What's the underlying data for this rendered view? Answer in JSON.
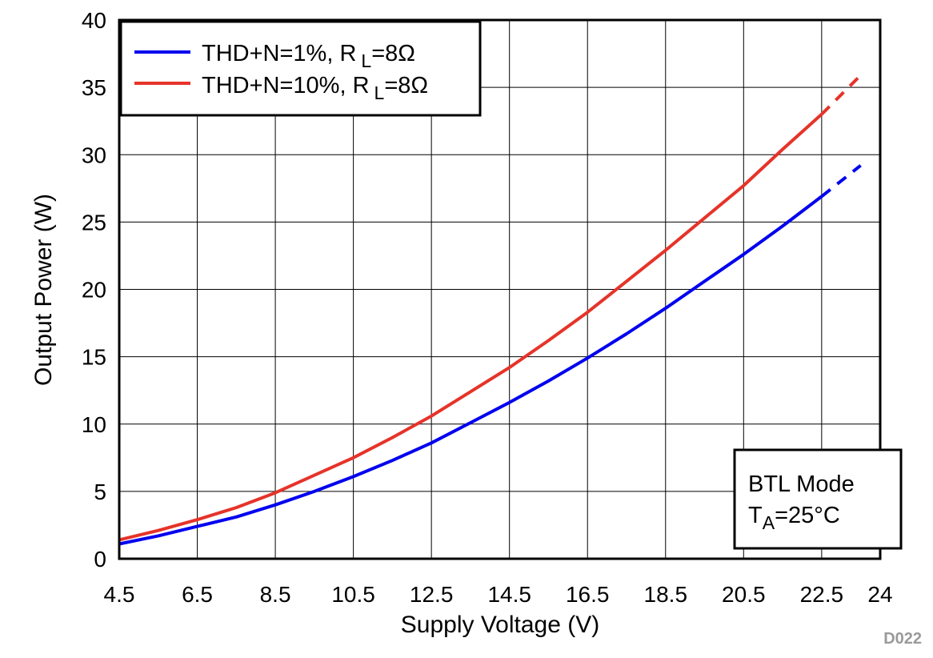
{
  "chart_data": {
    "type": "line",
    "title": "",
    "xlabel": "Supply Voltage (V)",
    "ylabel": "Output Power (W)",
    "xlim": [
      4.5,
      24
    ],
    "ylim": [
      0,
      40
    ],
    "x_ticks": [
      "4.5",
      "6.5",
      "8.5",
      "10.5",
      "12.5",
      "14.5",
      "16.5",
      "18.5",
      "20.5",
      "22.5",
      "24"
    ],
    "y_ticks": [
      "0",
      "5",
      "10",
      "15",
      "20",
      "25",
      "30",
      "35",
      "40"
    ],
    "grid": true,
    "legend": {
      "position": "top-left",
      "entries": [
        {
          "text": "THD+N=1%, R",
          "subscript": "L",
          "suffix": "=8Ω",
          "color": "#0000ee"
        },
        {
          "text": "THD+N=10%, R",
          "subscript": "L",
          "suffix": "=8Ω",
          "color": "#e63329"
        }
      ]
    },
    "annotation": {
      "position": "bottom-right",
      "line1": "BTL Mode",
      "line2_prefix": "T",
      "line2_subscript": "A",
      "line2_suffix": "=25°C"
    },
    "series": [
      {
        "name": "THD+N=1%, RL=8Ω",
        "color": "#0000ee",
        "x": [
          4.5,
          5.5,
          6.5,
          7.5,
          8.5,
          9.5,
          10.5,
          11.5,
          12.5,
          13.5,
          14.5,
          15.5,
          16.5,
          17.5,
          18.5,
          19.5,
          20.5,
          21.5,
          22.5
        ],
        "y": [
          1.1,
          1.7,
          2.4,
          3.1,
          4.0,
          5.0,
          6.1,
          7.3,
          8.6,
          10.1,
          11.6,
          13.2,
          14.9,
          16.7,
          18.6,
          20.6,
          22.6,
          24.7,
          26.9
        ],
        "dashed_x": [
          22.5,
          23.5
        ],
        "dashed_y": [
          26.9,
          29.2
        ]
      },
      {
        "name": "THD+N=10%, RL=8Ω",
        "color": "#e63329",
        "x": [
          4.5,
          5.5,
          6.5,
          7.5,
          8.5,
          9.5,
          10.5,
          11.5,
          12.5,
          13.5,
          14.5,
          15.5,
          16.5,
          17.5,
          18.5,
          19.5,
          20.5,
          21.5,
          22.5
        ],
        "y": [
          1.4,
          2.1,
          2.9,
          3.8,
          4.9,
          6.2,
          7.5,
          9.0,
          10.6,
          12.4,
          14.2,
          16.2,
          18.3,
          20.6,
          22.9,
          25.3,
          27.7,
          30.4,
          33.0
        ],
        "dashed_x": [
          22.5,
          23.5
        ],
        "dashed_y": [
          33.0,
          35.9
        ]
      }
    ]
  },
  "figure_code": "D022"
}
